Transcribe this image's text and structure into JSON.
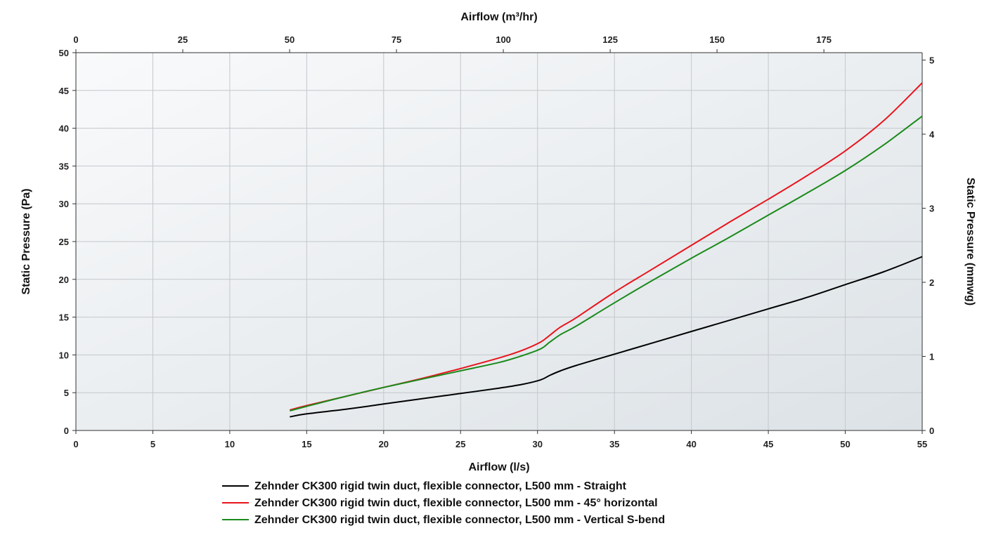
{
  "chart_data": {
    "type": "line",
    "xlabel": "Airflow (l/s)",
    "x2label": "Airflow (m³/hr)",
    "ylabel": "Static Pressure (Pa)",
    "y2label": "Static Pressure (mmwg)",
    "xlim": [
      0,
      55
    ],
    "x2lim": [
      0,
      198
    ],
    "ylim": [
      0,
      50
    ],
    "y2lim": [
      0,
      5.1
    ],
    "x_ticks": [
      "0",
      "5",
      "10",
      "15",
      "20",
      "25",
      "30",
      "35",
      "40",
      "45",
      "50",
      "55"
    ],
    "x2_ticks": [
      "0",
      "25",
      "50",
      "75",
      "100",
      "125",
      "150",
      "175"
    ],
    "y_ticks": [
      "0",
      "5",
      "10",
      "15",
      "20",
      "25",
      "30",
      "35",
      "40",
      "45",
      "50"
    ],
    "y2_ticks": [
      "0",
      "1",
      "2",
      "3",
      "4",
      "5"
    ],
    "grid": true,
    "legend_position": "bottom",
    "series": [
      {
        "name": "Zehnder CK300 rigid twin duct, flexible connector, L500 mm - Straight",
        "color": "#000000",
        "points": [
          [
            13.9,
            1.8
          ],
          [
            15,
            2.2
          ],
          [
            17.5,
            2.8
          ],
          [
            20,
            3.5
          ],
          [
            22.5,
            4.2
          ],
          [
            25,
            4.9
          ],
          [
            27.5,
            5.6
          ],
          [
            29,
            6.1
          ],
          [
            30.2,
            6.7
          ],
          [
            30.8,
            7.3
          ],
          [
            31.5,
            7.9
          ],
          [
            32.5,
            8.6
          ],
          [
            35,
            10.1
          ],
          [
            37.5,
            11.6
          ],
          [
            40,
            13.1
          ],
          [
            42.5,
            14.6
          ],
          [
            45,
            16.1
          ],
          [
            47.5,
            17.6
          ],
          [
            50,
            19.3
          ],
          [
            52.5,
            21.0
          ],
          [
            55,
            23.0
          ]
        ]
      },
      {
        "name": "Zehnder CK300 rigid twin duct, flexible connector, L500 mm - 45° horizontal",
        "color": "#e8141c",
        "points": [
          [
            13.9,
            2.7
          ],
          [
            15,
            3.3
          ],
          [
            17.5,
            4.5
          ],
          [
            20,
            5.7
          ],
          [
            22.5,
            6.9
          ],
          [
            25,
            8.2
          ],
          [
            27.5,
            9.6
          ],
          [
            29,
            10.6
          ],
          [
            30.2,
            11.7
          ],
          [
            30.8,
            12.6
          ],
          [
            31.5,
            13.7
          ],
          [
            32.5,
            14.9
          ],
          [
            35,
            18.3
          ],
          [
            37.5,
            21.4
          ],
          [
            40,
            24.5
          ],
          [
            42.5,
            27.6
          ],
          [
            45,
            30.6
          ],
          [
            47.5,
            33.7
          ],
          [
            50,
            37.0
          ],
          [
            52.5,
            41.0
          ],
          [
            55,
            46.0
          ]
        ]
      },
      {
        "name": "Zehnder CK300 rigid twin duct, flexible connector, L500 mm - Vertical S-bend",
        "color": "#1a8a1a",
        "points": [
          [
            13.9,
            2.6
          ],
          [
            15,
            3.2
          ],
          [
            17.5,
            4.5
          ],
          [
            20,
            5.7
          ],
          [
            22.5,
            6.8
          ],
          [
            25,
            7.9
          ],
          [
            27.5,
            9.0
          ],
          [
            29,
            9.9
          ],
          [
            30.2,
            10.8
          ],
          [
            30.8,
            11.7
          ],
          [
            31.5,
            12.7
          ],
          [
            32.5,
            13.8
          ],
          [
            35,
            16.9
          ],
          [
            37.5,
            19.9
          ],
          [
            40,
            22.8
          ],
          [
            42.5,
            25.6
          ],
          [
            45,
            28.5
          ],
          [
            47.5,
            31.4
          ],
          [
            50,
            34.4
          ],
          [
            52.5,
            37.8
          ],
          [
            55,
            41.6
          ]
        ]
      }
    ]
  }
}
